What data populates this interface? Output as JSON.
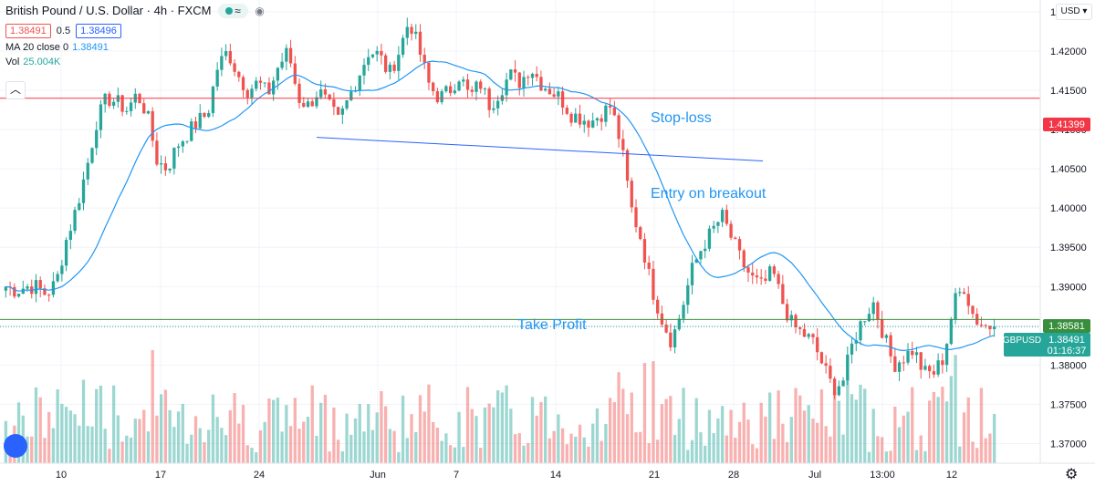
{
  "legend": {
    "symbol": "British Pound / U.S. Dollar",
    "interval": "4h",
    "exchange": "FXCM",
    "separator": "·",
    "bid": "1.38491",
    "spread": "0.5",
    "ask": "1.38496",
    "ma_label": "MA 20 close 0",
    "ma_value": "1.38491",
    "vol_label": "Vol",
    "vol_value": "25.004K"
  },
  "currency_selector": "USD",
  "annotations": {
    "stop_loss": "Stop-loss",
    "entry": "Entry on breakout",
    "take_profit": "Take Profit"
  },
  "price_labels": {
    "stop_loss": "1.41399",
    "take_profit": "1.38581",
    "symbol": "GBPUSD",
    "current": "1.38491",
    "countdown": "01:16:37"
  },
  "colors": {
    "up": "#26a69a",
    "down": "#ef5350",
    "ma": "#2196f3",
    "stop": "#f23645",
    "take": "#388e3c",
    "trend": "#2962ff"
  },
  "icons": [
    "eye-icon",
    "chevron-up-icon",
    "tradingview-logo-icon",
    "gear-icon"
  ],
  "chart_data": {
    "type": "candlestick",
    "y_ticks": [
      "1.42500",
      "1.42000",
      "1.41500",
      "1.41000",
      "1.40500",
      "1.40000",
      "1.39500",
      "1.39000",
      "1.38500",
      "1.38000",
      "1.37500",
      "1.37000"
    ],
    "x_ticks": [
      "10",
      "17",
      "24",
      "Jun",
      "7",
      "14",
      "21",
      "28",
      "Jul",
      "13:00",
      "12"
    ],
    "ylim": [
      1.3675,
      1.4265
    ],
    "horizontal_lines": [
      {
        "name": "Stop-loss",
        "value": 1.41399
      },
      {
        "name": "Take Profit",
        "value": 1.38581
      }
    ],
    "trendline": [
      1.409,
      1.406
    ],
    "series": [
      {
        "name": "GBPUSD",
        "kind": "ohlc",
        "close_path": [
          1.39,
          1.3895,
          1.39,
          1.39,
          1.389,
          1.3905,
          1.396,
          1.4,
          1.405,
          1.411,
          1.414,
          1.4135,
          1.4125,
          1.4145,
          1.412,
          1.406,
          1.405,
          1.408,
          1.4095,
          1.411,
          1.412,
          1.418,
          1.42,
          1.417,
          1.415,
          1.416,
          1.4145,
          1.418,
          1.42,
          1.414,
          1.413,
          1.415,
          1.413,
          1.411,
          1.414,
          1.417,
          1.42,
          1.4195,
          1.417,
          1.42,
          1.424,
          1.42,
          1.4155,
          1.414,
          1.415,
          1.417,
          1.414,
          1.416,
          1.413,
          1.415,
          1.417,
          1.416,
          1.418,
          1.416,
          1.415,
          1.414,
          1.412,
          1.4115,
          1.411,
          1.412,
          1.413,
          1.408,
          1.4,
          1.396,
          1.39,
          1.386,
          1.383,
          1.387,
          1.392,
          1.395,
          1.397,
          1.399,
          1.396,
          1.393,
          1.391,
          1.39,
          1.392,
          1.388,
          1.385,
          1.384,
          1.383,
          1.38,
          1.377,
          1.378,
          1.383,
          1.386,
          1.388,
          1.384,
          1.38,
          1.381,
          1.382,
          1.379,
          1.379,
          1.381,
          1.388,
          1.39,
          1.386,
          1.385,
          1.3849
        ]
      },
      {
        "name": "MA 20 close 0",
        "kind": "line"
      },
      {
        "name": "Vol",
        "kind": "volume"
      }
    ]
  }
}
